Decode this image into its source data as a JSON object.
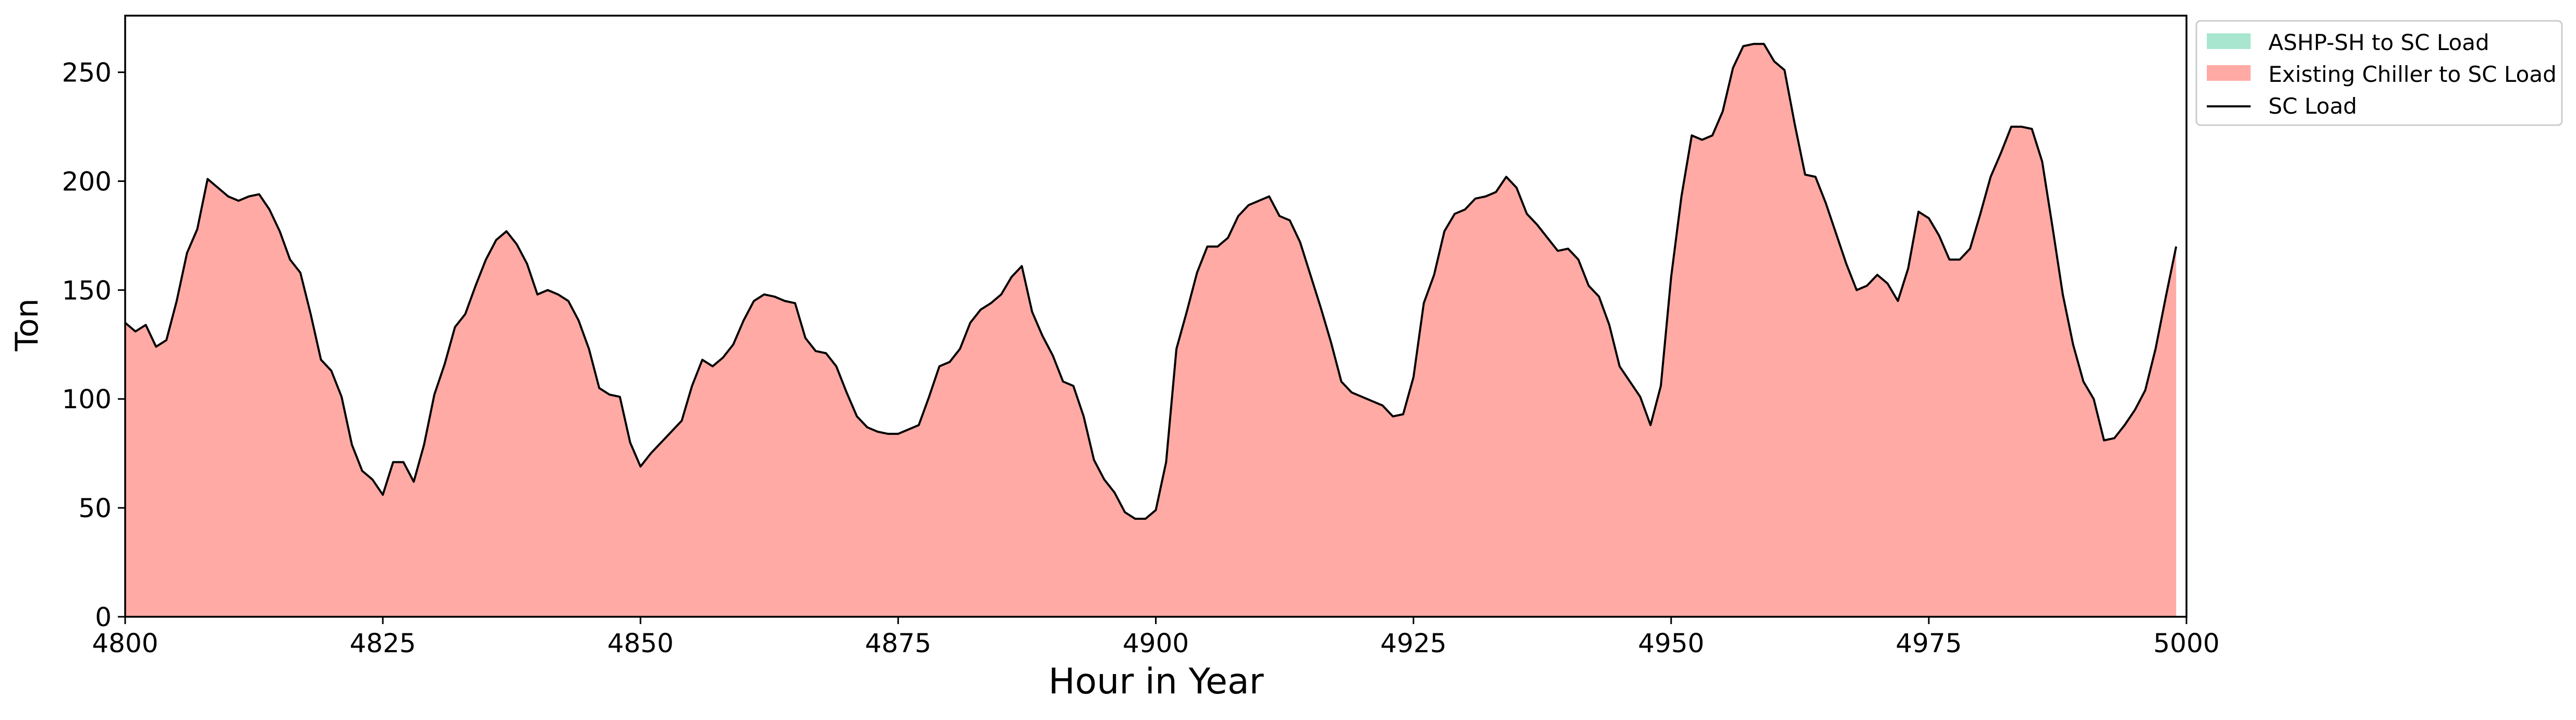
{
  "chart_data": {
    "type": "area",
    "xlabel": "Hour in Year",
    "ylabel": "Ton",
    "xlim": [
      4800,
      5000
    ],
    "ylim": [
      0,
      276
    ],
    "xticks": [
      4800,
      4825,
      4850,
      4875,
      4900,
      4925,
      4950,
      4975,
      5000
    ],
    "yticks": [
      0,
      50,
      100,
      150,
      200,
      250
    ],
    "grid": false,
    "legend_position": "outside-top-right",
    "colors": {
      "ashp": "#a8e6cf",
      "chiller": "#ffaaa5",
      "load_line": "#000000"
    },
    "x_start": 4800,
    "series": [
      {
        "name": "ASHP-SH to SC Load",
        "kind": "stacked-area",
        "color": "#a8e6cf",
        "values": [
          0,
          0,
          0,
          0,
          0,
          0,
          0,
          0,
          0,
          0,
          0,
          0,
          0,
          0,
          0,
          0,
          0,
          0,
          0,
          0,
          0,
          0,
          0,
          0,
          0,
          0,
          0,
          0,
          0,
          0,
          0,
          0,
          0,
          0,
          0,
          0,
          0,
          0,
          0,
          0,
          0,
          0,
          0,
          0,
          0,
          0,
          0,
          0,
          0,
          0,
          0,
          0,
          0,
          0,
          0,
          0,
          0,
          0,
          0,
          0,
          0,
          0,
          0,
          0,
          0,
          0,
          0,
          0,
          0,
          0,
          0,
          0,
          0,
          0,
          0,
          0,
          0,
          0,
          0,
          0,
          0,
          0,
          0,
          0,
          0,
          0,
          0,
          0,
          0,
          0,
          0,
          0,
          0,
          0,
          0,
          0,
          0,
          0,
          0,
          0,
          0,
          0,
          0,
          0,
          0,
          0,
          0,
          0,
          0,
          0,
          0,
          0,
          0,
          0,
          0,
          0,
          0,
          0,
          0,
          0,
          0,
          0,
          0,
          0,
          0,
          0,
          0,
          0,
          0,
          0,
          0,
          0,
          0,
          0,
          0,
          0,
          0,
          0,
          0,
          0,
          0,
          0,
          0,
          0,
          0,
          0,
          0,
          0,
          0,
          0,
          0,
          0,
          0,
          0,
          0,
          0,
          0,
          0,
          0,
          0,
          0,
          0,
          0,
          0,
          0,
          0,
          0,
          0,
          0,
          0,
          0,
          0,
          0,
          0,
          0,
          0,
          0,
          0,
          0,
          0,
          0,
          0,
          0,
          0,
          0,
          0,
          0,
          0,
          0,
          0,
          0,
          0,
          0,
          0,
          0,
          0,
          0,
          0,
          0,
          0
        ]
      },
      {
        "name": "Existing Chiller to SC Load",
        "kind": "stacked-area",
        "color": "#ffaaa5",
        "values": [
          135,
          131,
          134,
          124,
          127,
          145,
          167,
          178,
          201,
          197,
          193,
          191,
          193,
          194,
          187,
          177,
          164,
          158,
          139,
          118,
          113,
          101,
          79,
          67,
          63,
          56,
          71,
          71,
          62,
          79,
          102,
          116,
          133,
          139,
          152,
          164,
          173,
          177,
          171,
          162,
          148,
          150,
          148,
          145,
          136,
          123,
          105,
          102,
          101,
          80,
          69,
          75,
          80,
          85,
          90,
          106,
          118,
          115,
          119,
          125,
          136,
          145,
          148,
          147,
          145,
          144,
          128,
          122,
          121,
          115,
          103,
          92,
          87,
          85,
          84,
          84,
          86,
          88,
          101,
          115,
          117,
          123,
          135,
          141,
          144,
          148,
          156,
          161,
          140,
          129,
          120,
          108,
          106,
          92,
          72,
          63,
          57,
          48,
          45,
          45,
          49,
          71,
          123,
          140,
          158,
          170,
          170,
          174,
          184,
          189,
          191,
          193,
          184,
          182,
          172,
          157,
          142,
          126,
          108,
          103,
          101,
          99,
          97,
          92,
          93,
          110,
          144,
          157,
          177,
          185,
          187,
          192,
          193,
          195,
          202,
          197,
          185,
          180,
          174,
          168,
          169,
          164,
          152,
          147,
          134,
          115,
          108,
          101,
          88,
          106,
          156,
          193,
          221,
          219,
          221,
          232,
          252,
          262,
          263,
          263,
          255,
          251,
          226,
          203,
          202,
          190,
          176,
          162,
          150,
          152,
          157,
          153,
          145,
          160,
          186,
          183,
          175,
          164,
          164,
          169,
          185,
          202,
          213,
          225,
          225,
          224,
          209,
          179,
          148,
          125,
          108,
          100,
          81,
          82,
          88,
          95,
          104,
          123,
          147,
          170
        ]
      }
    ],
    "line": {
      "name": "SC Load",
      "color": "#000000",
      "values": [
        135,
        131,
        134,
        124,
        127,
        145,
        167,
        178,
        201,
        197,
        193,
        191,
        193,
        194,
        187,
        177,
        164,
        158,
        139,
        118,
        113,
        101,
        79,
        67,
        63,
        56,
        71,
        71,
        62,
        79,
        102,
        116,
        133,
        139,
        152,
        164,
        173,
        177,
        171,
        162,
        148,
        150,
        148,
        145,
        136,
        123,
        105,
        102,
        101,
        80,
        69,
        75,
        80,
        85,
        90,
        106,
        118,
        115,
        119,
        125,
        136,
        145,
        148,
        147,
        145,
        144,
        128,
        122,
        121,
        115,
        103,
        92,
        87,
        85,
        84,
        84,
        86,
        88,
        101,
        115,
        117,
        123,
        135,
        141,
        144,
        148,
        156,
        161,
        140,
        129,
        120,
        108,
        106,
        92,
        72,
        63,
        57,
        48,
        45,
        45,
        49,
        71,
        123,
        140,
        158,
        170,
        170,
        174,
        184,
        189,
        191,
        193,
        184,
        182,
        172,
        157,
        142,
        126,
        108,
        103,
        101,
        99,
        97,
        92,
        93,
        110,
        144,
        157,
        177,
        185,
        187,
        192,
        193,
        195,
        202,
        197,
        185,
        180,
        174,
        168,
        169,
        164,
        152,
        147,
        134,
        115,
        108,
        101,
        88,
        106,
        156,
        193,
        221,
        219,
        221,
        232,
        252,
        262,
        263,
        263,
        255,
        251,
        226,
        203,
        202,
        190,
        176,
        162,
        150,
        152,
        157,
        153,
        145,
        160,
        186,
        183,
        175,
        164,
        164,
        169,
        185,
        202,
        213,
        225,
        225,
        224,
        209,
        179,
        148,
        125,
        108,
        100,
        81,
        82,
        88,
        95,
        104,
        123,
        147,
        170
      ]
    },
    "legend": [
      {
        "label": "ASHP-SH to SC Load",
        "kind": "patch",
        "color": "#a8e6cf"
      },
      {
        "label": "Existing Chiller to SC Load",
        "kind": "patch",
        "color": "#ffaaa5"
      },
      {
        "label": "SC Load",
        "kind": "line",
        "color": "#000000"
      }
    ]
  }
}
